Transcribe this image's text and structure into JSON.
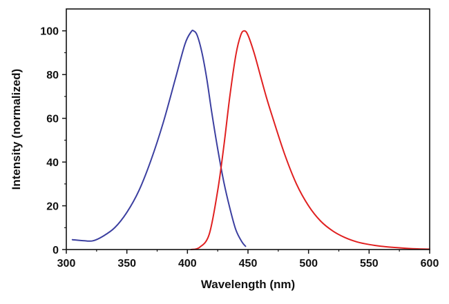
{
  "chart_data": {
    "type": "line",
    "title": "",
    "xlabel": "Wavelength (nm)",
    "ylabel": "Intensity (normalized)",
    "xlim": [
      300,
      600
    ],
    "ylim": [
      0,
      110
    ],
    "xticks": [
      "300",
      "350",
      "400",
      "450",
      "500",
      "550",
      "600"
    ],
    "yticks": [
      "0",
      "20",
      "40",
      "60",
      "80",
      "100"
    ],
    "grid": false,
    "legend": "none",
    "series": [
      {
        "color": "#3b3fa0",
        "x": [
          305,
          315,
          322,
          330,
          340,
          350,
          360,
          370,
          380,
          390,
          398,
          403,
          405,
          408,
          412,
          416,
          420,
          425,
          430,
          435,
          440,
          445,
          448
        ],
        "y": [
          4.5,
          4,
          4,
          6,
          10,
          17,
          27,
          41,
          58,
          78,
          94,
          99.5,
          100,
          98,
          90,
          78,
          63,
          46,
          31,
          19,
          9,
          3.5,
          1.5
        ]
      },
      {
        "color": "#e02020",
        "x": [
          403,
          410,
          418,
          425,
          430,
          435,
          440,
          444,
          447,
          450,
          455,
          460,
          465,
          470,
          480,
          490,
          500,
          510,
          520,
          530,
          540,
          550,
          560,
          570,
          580,
          590,
          600
        ],
        "y": [
          0,
          1,
          7,
          27,
          47,
          70,
          89,
          98,
          100,
          98,
          90,
          80,
          70,
          61,
          44,
          30,
          20,
          13,
          8.5,
          5.5,
          3.5,
          2.3,
          1.5,
          1,
          0.6,
          0.3,
          0.2
        ]
      }
    ]
  }
}
